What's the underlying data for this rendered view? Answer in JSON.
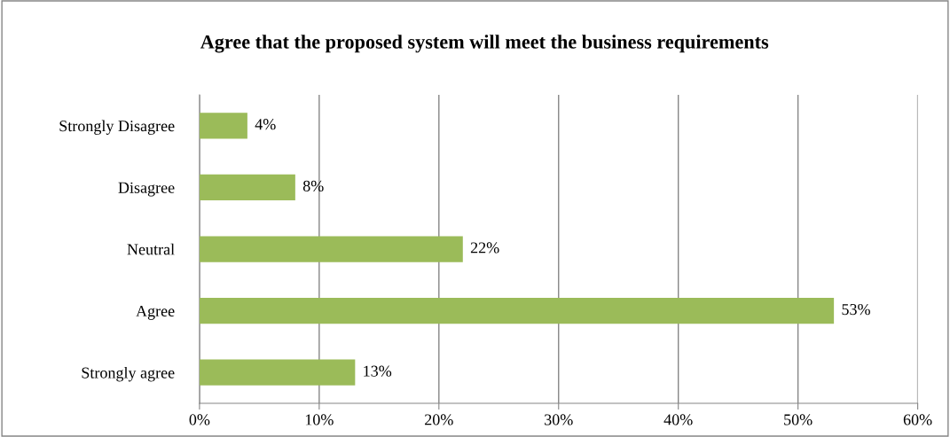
{
  "chart_data": {
    "type": "bar",
    "orientation": "horizontal",
    "title": "Agree that the proposed system will meet the business requirements",
    "categories": [
      "Strongly Disagree",
      "Disagree",
      "Neutral",
      "Agree",
      "Strongly agree"
    ],
    "values": [
      4,
      8,
      22,
      53,
      13
    ],
    "color": "#9bbb59",
    "value_labels": [
      "4%",
      "8%",
      "22%",
      "53%",
      "13%"
    ],
    "xlim": [
      0,
      60
    ],
    "xticks": [
      {
        "value": 0,
        "label": "0%"
      },
      {
        "value": 10,
        "label": "10%"
      },
      {
        "value": 20,
        "label": "20%"
      },
      {
        "value": 30,
        "label": "30%"
      },
      {
        "value": 40,
        "label": "40%"
      },
      {
        "value": 50,
        "label": "50%"
      },
      {
        "value": 60,
        "label": "60%"
      }
    ],
    "grid": "x",
    "legend": false
  }
}
